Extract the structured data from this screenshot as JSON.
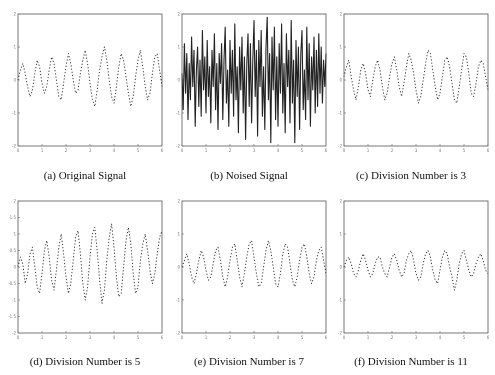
{
  "chart_data": [
    {
      "id": "a",
      "type": "line",
      "caption": "(a) Original Signal",
      "style": "dotted",
      "x": [
        0.0,
        0.1,
        0.2,
        0.3,
        0.4,
        0.5,
        0.6,
        0.7,
        0.8,
        0.9,
        1.0,
        1.1,
        1.2,
        1.3,
        1.4,
        1.5,
        1.6,
        1.7,
        1.8,
        1.9,
        2.0,
        2.1,
        2.2,
        2.3,
        2.4,
        2.5,
        2.6,
        2.7,
        2.8,
        2.9,
        3.0,
        3.1,
        3.2,
        3.3,
        3.4,
        3.5,
        3.6,
        3.7,
        3.8,
        3.9,
        4.0,
        4.1,
        4.2,
        4.3,
        4.4,
        4.5,
        4.6,
        4.7,
        4.8,
        4.9,
        5.0,
        5.1,
        5.2,
        5.3,
        5.4,
        5.5,
        5.6,
        5.7,
        5.8,
        5.9,
        6.0
      ],
      "values": [
        0.0,
        0.3,
        0.5,
        0.2,
        -0.2,
        -0.5,
        -0.3,
        0.2,
        0.6,
        0.4,
        -0.1,
        -0.4,
        -0.2,
        0.3,
        0.7,
        0.5,
        0.0,
        -0.5,
        -0.6,
        -0.1,
        0.4,
        0.8,
        0.5,
        0.0,
        -0.4,
        -0.3,
        0.2,
        0.6,
        0.9,
        0.5,
        -0.1,
        -0.6,
        -0.8,
        -0.3,
        0.3,
        0.7,
        1.0,
        0.6,
        0.0,
        -0.5,
        -0.7,
        -0.2,
        0.4,
        0.8,
        0.6,
        0.1,
        -0.4,
        -0.8,
        -0.5,
        0.1,
        0.6,
        0.9,
        0.4,
        -0.2,
        -0.6,
        -0.4,
        0.2,
        0.7,
        0.8,
        0.3,
        -0.2
      ],
      "xlim": [
        0,
        6
      ],
      "ylim": [
        -2,
        2
      ],
      "xticks": [
        0,
        1,
        2,
        3,
        4,
        5,
        6
      ],
      "yticks": [
        -2,
        -1,
        0,
        1,
        2
      ]
    },
    {
      "id": "b",
      "type": "line",
      "caption": "(b) Noised Signal",
      "style": "solid",
      "x": [
        0.0,
        0.05,
        0.1,
        0.15,
        0.2,
        0.25,
        0.3,
        0.35,
        0.4,
        0.45,
        0.5,
        0.55,
        0.6,
        0.65,
        0.7,
        0.75,
        0.8,
        0.85,
        0.9,
        0.95,
        1.0,
        1.05,
        1.1,
        1.15,
        1.2,
        1.25,
        1.3,
        1.35,
        1.4,
        1.45,
        1.5,
        1.55,
        1.6,
        1.65,
        1.7,
        1.75,
        1.8,
        1.85,
        1.9,
        1.95,
        2.0,
        2.05,
        2.1,
        2.15,
        2.2,
        2.25,
        2.3,
        2.35,
        2.4,
        2.45,
        2.5,
        2.55,
        2.6,
        2.65,
        2.7,
        2.75,
        2.8,
        2.85,
        2.9,
        2.95,
        3.0,
        3.05,
        3.1,
        3.15,
        3.2,
        3.25,
        3.3,
        3.35,
        3.4,
        3.45,
        3.5,
        3.55,
        3.6,
        3.65,
        3.7,
        3.75,
        3.8,
        3.85,
        3.9,
        3.95,
        4.0,
        4.05,
        4.1,
        4.15,
        4.2,
        4.25,
        4.3,
        4.35,
        4.4,
        4.45,
        4.5,
        4.55,
        4.6,
        4.65,
        4.7,
        4.75,
        4.8,
        4.85,
        4.9,
        4.95,
        5.0,
        5.05,
        5.1,
        5.15,
        5.2,
        5.25,
        5.3,
        5.35,
        5.4,
        5.45,
        5.5,
        5.55,
        5.6,
        5.65,
        5.7,
        5.75,
        5.8,
        5.85,
        5.9,
        5.95,
        6.0
      ],
      "values": [
        0.2,
        -0.9,
        1.1,
        -0.4,
        0.8,
        -1.2,
        0.5,
        -0.6,
        1.3,
        -0.2,
        0.9,
        -1.4,
        0.3,
        1.0,
        -0.8,
        0.6,
        -1.1,
        1.5,
        -0.3,
        0.7,
        -1.0,
        1.2,
        -0.5,
        0.4,
        -1.3,
        0.9,
        -0.2,
        1.4,
        -0.9,
        0.5,
        -1.5,
        0.8,
        -0.1,
        1.1,
        -1.2,
        0.6,
        1.6,
        -0.7,
        0.3,
        -1.4,
        1.2,
        -0.4,
        0.9,
        -1.1,
        1.7,
        -0.6,
        0.4,
        -1.6,
        1.0,
        -0.3,
        1.3,
        -1.0,
        0.7,
        -1.8,
        0.5,
        1.4,
        -0.8,
        1.1,
        -1.3,
        0.6,
        1.8,
        -0.5,
        0.9,
        -1.7,
        1.2,
        -0.2,
        1.5,
        -1.1,
        0.4,
        -1.5,
        1.0,
        1.9,
        -0.6,
        0.8,
        -1.9,
        1.3,
        -0.3,
        1.6,
        -1.2,
        0.7,
        -1.4,
        1.1,
        -0.4,
        1.7,
        -1.0,
        0.5,
        -1.6,
        1.4,
        -0.2,
        0.9,
        -1.3,
        1.8,
        -0.7,
        0.6,
        -1.9,
        1.2,
        -0.5,
        1.0,
        -1.5,
        0.8,
        1.5,
        -0.9,
        0.3,
        -1.2,
        1.6,
        -0.6,
        1.1,
        -1.4,
        0.7,
        -0.3,
        1.3,
        -1.0,
        0.9,
        -0.8,
        1.4,
        -0.4,
        1.0,
        -0.7,
        0.6,
        -0.2,
        0.8
      ],
      "xlim": [
        0,
        6
      ],
      "ylim": [
        -2,
        2
      ],
      "xticks": [
        0,
        1,
        2,
        3,
        4,
        5,
        6
      ],
      "yticks": [
        -2,
        -1,
        0,
        1,
        2
      ]
    },
    {
      "id": "c",
      "type": "line",
      "caption": "(c) Division Number is 3",
      "style": "dotted",
      "x": [
        0.0,
        0.1,
        0.2,
        0.3,
        0.4,
        0.5,
        0.6,
        0.7,
        0.8,
        0.9,
        1.0,
        1.1,
        1.2,
        1.3,
        1.4,
        1.5,
        1.6,
        1.7,
        1.8,
        1.9,
        2.0,
        2.1,
        2.2,
        2.3,
        2.4,
        2.5,
        2.6,
        2.7,
        2.8,
        2.9,
        3.0,
        3.1,
        3.2,
        3.3,
        3.4,
        3.5,
        3.6,
        3.7,
        3.8,
        3.9,
        4.0,
        4.1,
        4.2,
        4.3,
        4.4,
        4.5,
        4.6,
        4.7,
        4.8,
        4.9,
        5.0,
        5.1,
        5.2,
        5.3,
        5.4,
        5.5,
        5.6,
        5.7,
        5.8,
        5.9,
        6.0
      ],
      "values": [
        0.1,
        0.4,
        0.6,
        0.1,
        -0.3,
        -0.6,
        -0.2,
        0.3,
        0.5,
        0.2,
        -0.3,
        -0.5,
        0.0,
        0.4,
        0.6,
        0.3,
        -0.2,
        -0.6,
        -0.4,
        0.1,
        0.5,
        0.7,
        0.3,
        -0.2,
        -0.5,
        -0.1,
        0.4,
        0.8,
        0.6,
        0.2,
        -0.3,
        -0.7,
        -0.5,
        0.0,
        0.5,
        0.9,
        0.8,
        0.3,
        -0.2,
        -0.6,
        -0.4,
        0.1,
        0.6,
        0.7,
        0.4,
        -0.1,
        -0.6,
        -0.7,
        -0.2,
        0.3,
        0.8,
        0.7,
        0.2,
        -0.4,
        -0.5,
        -0.1,
        0.4,
        0.6,
        0.5,
        0.1,
        -0.3
      ],
      "xlim": [
        0,
        6
      ],
      "ylim": [
        -2,
        2
      ],
      "xticks": [
        0,
        1,
        2,
        3,
        4,
        5,
        6
      ],
      "yticks": [
        -2,
        -1,
        0,
        1,
        2
      ]
    },
    {
      "id": "d",
      "type": "line",
      "caption": "(d) Division Number is 5",
      "style": "dotted",
      "x": [
        0.0,
        0.1,
        0.2,
        0.3,
        0.4,
        0.5,
        0.6,
        0.7,
        0.8,
        0.9,
        1.0,
        1.1,
        1.2,
        1.3,
        1.4,
        1.5,
        1.6,
        1.7,
        1.8,
        1.9,
        2.0,
        2.1,
        2.2,
        2.3,
        2.4,
        2.5,
        2.6,
        2.7,
        2.8,
        2.9,
        3.0,
        3.1,
        3.2,
        3.3,
        3.4,
        3.5,
        3.6,
        3.7,
        3.8,
        3.9,
        4.0,
        4.1,
        4.2,
        4.3,
        4.4,
        4.5,
        4.6,
        4.7,
        4.8,
        4.9,
        5.0,
        5.1,
        5.2,
        5.3,
        5.4,
        5.5,
        5.6,
        5.7,
        5.8,
        5.9,
        6.0
      ],
      "values": [
        0.0,
        0.3,
        0.1,
        -0.5,
        -0.2,
        0.4,
        0.6,
        0.0,
        -0.6,
        -0.8,
        -0.2,
        0.5,
        0.8,
        0.3,
        -0.4,
        -0.7,
        -0.1,
        0.6,
        1.0,
        0.4,
        -0.3,
        -0.8,
        -0.5,
        0.2,
        0.9,
        1.1,
        0.4,
        -0.5,
        -1.0,
        -0.6,
        0.3,
        1.0,
        1.2,
        0.5,
        -0.4,
        -1.1,
        -0.7,
        0.2,
        0.9,
        1.3,
        0.6,
        -0.3,
        -0.9,
        -0.8,
        0.0,
        0.8,
        1.2,
        0.7,
        -0.2,
        -0.8,
        -0.6,
        0.2,
        0.7,
        1.0,
        0.5,
        -0.1,
        -0.5,
        -0.2,
        0.4,
        0.9,
        1.1
      ],
      "xlim": [
        0,
        6
      ],
      "ylim": [
        -2,
        2
      ],
      "xticks": [
        0,
        1,
        2,
        3,
        4,
        5,
        6
      ],
      "yticks": [
        -2,
        -1.5,
        -1,
        -0.5,
        0,
        0.5,
        1,
        1.5,
        2
      ]
    },
    {
      "id": "e",
      "type": "line",
      "caption": "(e) Division Number is 7",
      "style": "dotted",
      "x": [
        0.0,
        0.1,
        0.2,
        0.3,
        0.4,
        0.5,
        0.6,
        0.7,
        0.8,
        0.9,
        1.0,
        1.1,
        1.2,
        1.3,
        1.4,
        1.5,
        1.6,
        1.7,
        1.8,
        1.9,
        2.0,
        2.1,
        2.2,
        2.3,
        2.4,
        2.5,
        2.6,
        2.7,
        2.8,
        2.9,
        3.0,
        3.1,
        3.2,
        3.3,
        3.4,
        3.5,
        3.6,
        3.7,
        3.8,
        3.9,
        4.0,
        4.1,
        4.2,
        4.3,
        4.4,
        4.5,
        4.6,
        4.7,
        4.8,
        4.9,
        5.0,
        5.1,
        5.2,
        5.3,
        5.4,
        5.5,
        5.6,
        5.7,
        5.8,
        5.9,
        6.0
      ],
      "values": [
        0.0,
        0.2,
        0.4,
        0.1,
        -0.3,
        -0.5,
        -0.2,
        0.2,
        0.5,
        0.3,
        -0.1,
        -0.4,
        -0.3,
        0.1,
        0.5,
        0.6,
        0.2,
        -0.3,
        -0.6,
        -0.3,
        0.2,
        0.6,
        0.7,
        0.2,
        -0.3,
        -0.6,
        -0.2,
        0.3,
        0.7,
        0.8,
        0.3,
        -0.2,
        -0.6,
        -0.5,
        0.0,
        0.5,
        0.8,
        0.5,
        0.0,
        -0.5,
        -0.6,
        -0.2,
        0.4,
        0.7,
        0.6,
        0.1,
        -0.4,
        -0.6,
        -0.3,
        0.2,
        0.6,
        0.7,
        0.3,
        -0.2,
        -0.5,
        -0.3,
        0.2,
        0.5,
        0.6,
        0.2,
        -0.2
      ],
      "xlim": [
        0,
        6
      ],
      "ylim": [
        -2,
        2
      ],
      "xticks": [
        0,
        1,
        2,
        3,
        4,
        5,
        6
      ],
      "yticks": [
        -2,
        -1,
        0,
        1,
        2
      ]
    },
    {
      "id": "f",
      "type": "line",
      "caption": "(f) Division Number is 11",
      "style": "dotted",
      "x": [
        0.0,
        0.1,
        0.2,
        0.3,
        0.4,
        0.5,
        0.6,
        0.7,
        0.8,
        0.9,
        1.0,
        1.1,
        1.2,
        1.3,
        1.4,
        1.5,
        1.6,
        1.7,
        1.8,
        1.9,
        2.0,
        2.1,
        2.2,
        2.3,
        2.4,
        2.5,
        2.6,
        2.7,
        2.8,
        2.9,
        3.0,
        3.1,
        3.2,
        3.3,
        3.4,
        3.5,
        3.6,
        3.7,
        3.8,
        3.9,
        4.0,
        4.1,
        4.2,
        4.3,
        4.4,
        4.5,
        4.6,
        4.7,
        4.8,
        4.9,
        5.0,
        5.1,
        5.2,
        5.3,
        5.4,
        5.5,
        5.6,
        5.7,
        5.8,
        5.9,
        6.0
      ],
      "values": [
        0.0,
        0.2,
        0.3,
        0.1,
        -0.2,
        -0.3,
        -0.1,
        0.2,
        0.4,
        0.2,
        -0.1,
        -0.3,
        -0.2,
        0.1,
        0.3,
        0.3,
        0.0,
        -0.2,
        -0.3,
        0.0,
        0.3,
        0.4,
        0.2,
        -0.1,
        -0.3,
        -0.2,
        0.2,
        0.4,
        0.5,
        0.2,
        -0.2,
        -0.4,
        -0.3,
        0.1,
        0.4,
        0.5,
        0.3,
        -0.1,
        -0.4,
        -0.5,
        -0.1,
        0.3,
        0.5,
        0.4,
        0.0,
        -0.3,
        -0.7,
        -0.4,
        0.1,
        0.4,
        0.5,
        0.2,
        -0.1,
        -0.3,
        -0.2,
        0.1,
        0.3,
        0.4,
        0.2,
        -0.1,
        -0.2
      ],
      "xlim": [
        0,
        6
      ],
      "ylim": [
        -2,
        2
      ],
      "xticks": [
        0,
        1,
        2,
        3,
        4,
        5,
        6
      ],
      "yticks": [
        -2,
        -1,
        0,
        1,
        2
      ]
    }
  ]
}
